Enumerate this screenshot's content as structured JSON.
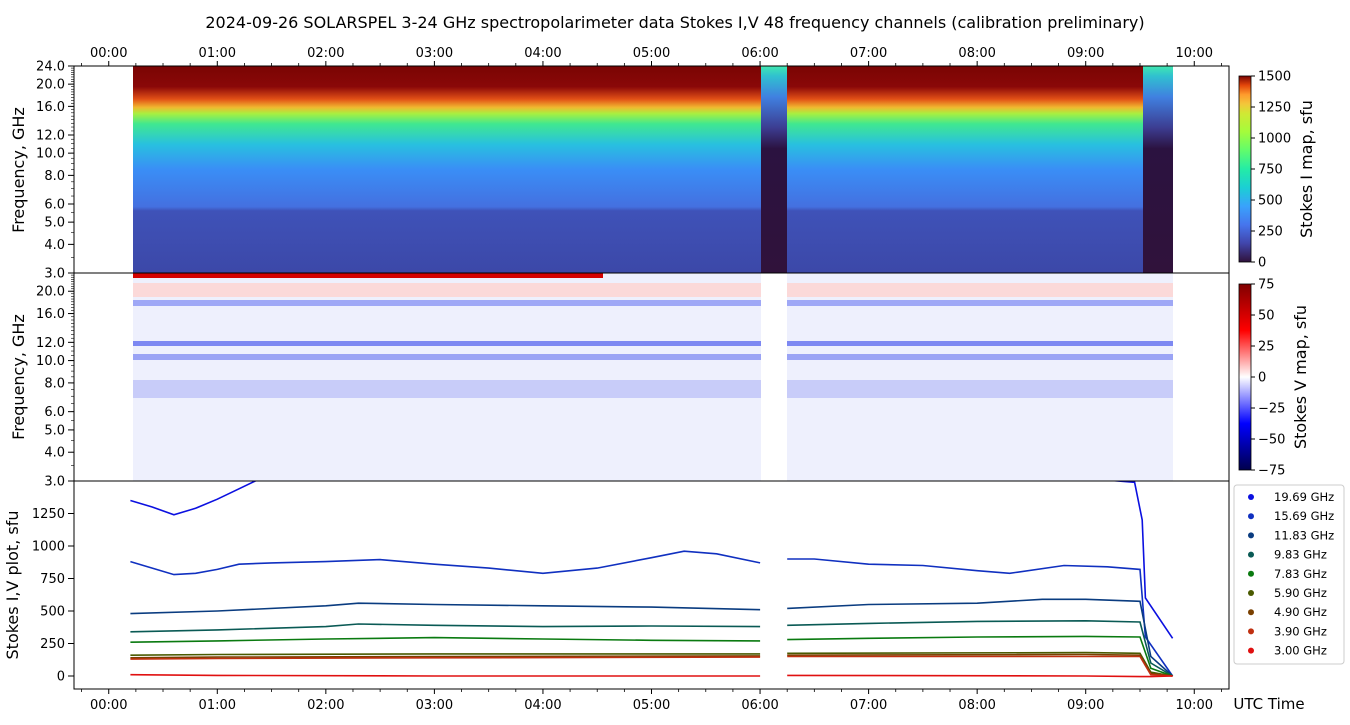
{
  "title": "2024-09-26  SOLARSPEL  3-24 GHz spectropolarimeter data   Stokes I,V   48 frequency channels   (calibration preliminary)",
  "x_axis": {
    "time_ticks": [
      "00:00",
      "01:00",
      "02:00",
      "03:00",
      "04:00",
      "05:00",
      "06:00",
      "07:00",
      "08:00",
      "09:00",
      "10:00"
    ],
    "xlim_hours": [
      -0.32,
      10.32
    ],
    "xlabel": "UTC Time"
  },
  "panel_i": {
    "ylabel": "Frequency, GHz",
    "colorbar_label": "Stokes I map, sfu",
    "colorbar_ticks": [
      "0",
      "250",
      "500",
      "750",
      "1000",
      "1250",
      "1500"
    ],
    "colorbar_range": [
      0,
      1500
    ],
    "colormap": "turbo",
    "freq_ticks": [
      "3.0",
      "4.0",
      "5.0",
      "6.0",
      "8.0",
      "10.0",
      "12.0",
      "16.0",
      "20.0",
      "24.0"
    ],
    "freq_ticks_values": [
      3,
      4,
      5,
      6,
      8,
      10,
      12,
      16,
      20,
      24
    ]
  },
  "panel_v": {
    "ylabel": "Frequency, GHz",
    "colorbar_label": "Stokes V map, sfu",
    "colorbar_ticks": [
      "−75",
      "−50",
      "−25",
      "0",
      "25",
      "50",
      "75"
    ],
    "colorbar_range": [
      -75,
      75
    ],
    "colormap": "seismic",
    "freq_ticks": [
      "3.0",
      "4.0",
      "5.0",
      "6.0",
      "8.0",
      "10.0",
      "12.0",
      "16.0",
      "20.0"
    ],
    "freq_ticks_values": [
      3,
      4,
      5,
      6,
      8,
      10,
      12,
      16,
      20
    ]
  },
  "panel_plot": {
    "ylabel": "Stokes I,V plot, sfu",
    "y_ticks": [
      "0",
      "250",
      "500",
      "750",
      "1000",
      "1250"
    ],
    "y_ticks_values": [
      0,
      250,
      500,
      750,
      1000,
      1250
    ],
    "ylim": [
      -100,
      1500
    ],
    "legend_position": "right",
    "legend": [
      {
        "label": "19.69 GHz",
        "color": "#0b10e0"
      },
      {
        "label": "15.69 GHz",
        "color": "#1030c0"
      },
      {
        "label": "11.83 GHz",
        "color": "#0a3c80"
      },
      {
        "label": "9.83 GHz",
        "color": "#0a5a55"
      },
      {
        "label": "7.83 GHz",
        "color": "#0a7a10"
      },
      {
        "label": "5.90 GHz",
        "color": "#4a5a00"
      },
      {
        "label": "4.90 GHz",
        "color": "#7a4000"
      },
      {
        "label": "3.90 GHz",
        "color": "#c03010"
      },
      {
        "label": "3.00 GHz",
        "color": "#e01010"
      }
    ]
  },
  "chart_data": {
    "type": "line",
    "title": "2024-09-26  SOLARSPEL  3-24 GHz spectropolarimeter data   Stokes I,V   48 frequency channels   (calibration preliminary)",
    "xlabel": "UTC Time",
    "ylabel": "Stokes I,V plot, sfu",
    "x_unit": "hours UTC",
    "ylim": [
      -100,
      1500
    ],
    "data_gaps_hours": [
      [
        6.0,
        6.23
      ]
    ],
    "series": [
      {
        "name": "19.69 GHz",
        "x": [
          0.2,
          0.4,
          0.6,
          0.8,
          1.0,
          1.2,
          1.4,
          1.6,
          2.0,
          3.0,
          4.0,
          5.0,
          6.0,
          6.25,
          7.0,
          8.0,
          9.0,
          9.45,
          9.52,
          9.55,
          9.8
        ],
        "y": [
          1350,
          1300,
          1240,
          1290,
          1360,
          1440,
          1520,
          1560,
          1580,
          1580,
          1580,
          1580,
          1580,
          1580,
          1580,
          1520,
          1520,
          1490,
          1200,
          600,
          290
        ]
      },
      {
        "name": "15.69 GHz",
        "x": [
          0.2,
          0.4,
          0.6,
          0.8,
          1.0,
          1.2,
          1.5,
          2.0,
          2.5,
          3.0,
          3.5,
          4.0,
          4.5,
          5.0,
          5.3,
          5.6,
          6.0,
          6.25,
          6.5,
          7.0,
          7.5,
          8.0,
          8.3,
          8.8,
          9.2,
          9.5,
          9.55,
          9.8
        ],
        "y": [
          880,
          830,
          780,
          790,
          820,
          860,
          870,
          880,
          895,
          860,
          830,
          790,
          830,
          910,
          960,
          940,
          870,
          900,
          900,
          860,
          850,
          810,
          790,
          850,
          840,
          820,
          300,
          0
        ]
      },
      {
        "name": "11.83 GHz",
        "x": [
          0.2,
          1.0,
          2.0,
          2.3,
          3.0,
          4.0,
          5.0,
          6.0,
          6.25,
          7.0,
          8.0,
          8.6,
          9.0,
          9.5,
          9.6,
          9.8
        ],
        "y": [
          480,
          500,
          540,
          560,
          550,
          540,
          530,
          510,
          520,
          550,
          560,
          590,
          590,
          575,
          150,
          0
        ]
      },
      {
        "name": "9.83 GHz",
        "x": [
          0.2,
          1.0,
          2.0,
          2.3,
          3.0,
          4.0,
          5.0,
          6.0,
          6.25,
          7.0,
          8.0,
          9.0,
          9.5,
          9.6,
          9.8
        ],
        "y": [
          340,
          355,
          380,
          400,
          390,
          380,
          385,
          380,
          390,
          405,
          420,
          425,
          415,
          100,
          0
        ]
      },
      {
        "name": "7.83 GHz",
        "x": [
          0.2,
          1.0,
          2.0,
          3.0,
          4.0,
          5.0,
          6.0,
          6.25,
          7.0,
          8.0,
          9.0,
          9.5,
          9.6,
          9.8
        ],
        "y": [
          260,
          270,
          285,
          295,
          285,
          275,
          270,
          280,
          290,
          300,
          305,
          300,
          60,
          0
        ]
      },
      {
        "name": "5.90 GHz",
        "x": [
          0.2,
          1.0,
          3.0,
          6.0,
          6.25,
          9.0,
          9.5,
          9.6,
          9.8
        ],
        "y": [
          160,
          165,
          170,
          170,
          175,
          180,
          175,
          30,
          0
        ]
      },
      {
        "name": "4.90 GHz",
        "x": [
          0.2,
          1.0,
          3.0,
          6.0,
          6.25,
          9.0,
          9.5,
          9.6,
          9.8
        ],
        "y": [
          140,
          145,
          150,
          155,
          160,
          165,
          160,
          20,
          0
        ]
      },
      {
        "name": "3.90 GHz",
        "x": [
          0.2,
          1.0,
          3.0,
          6.0,
          6.25,
          9.0,
          9.5,
          9.6,
          9.8
        ],
        "y": [
          130,
          135,
          140,
          145,
          150,
          150,
          150,
          10,
          0
        ]
      },
      {
        "name": "3.00 GHz",
        "x": [
          0.2,
          1.0,
          3.0,
          6.0,
          6.25,
          9.0,
          9.5,
          9.6,
          9.8
        ],
        "y": [
          10,
          5,
          0,
          0,
          5,
          0,
          -5,
          -5,
          0
        ]
      }
    ]
  }
}
